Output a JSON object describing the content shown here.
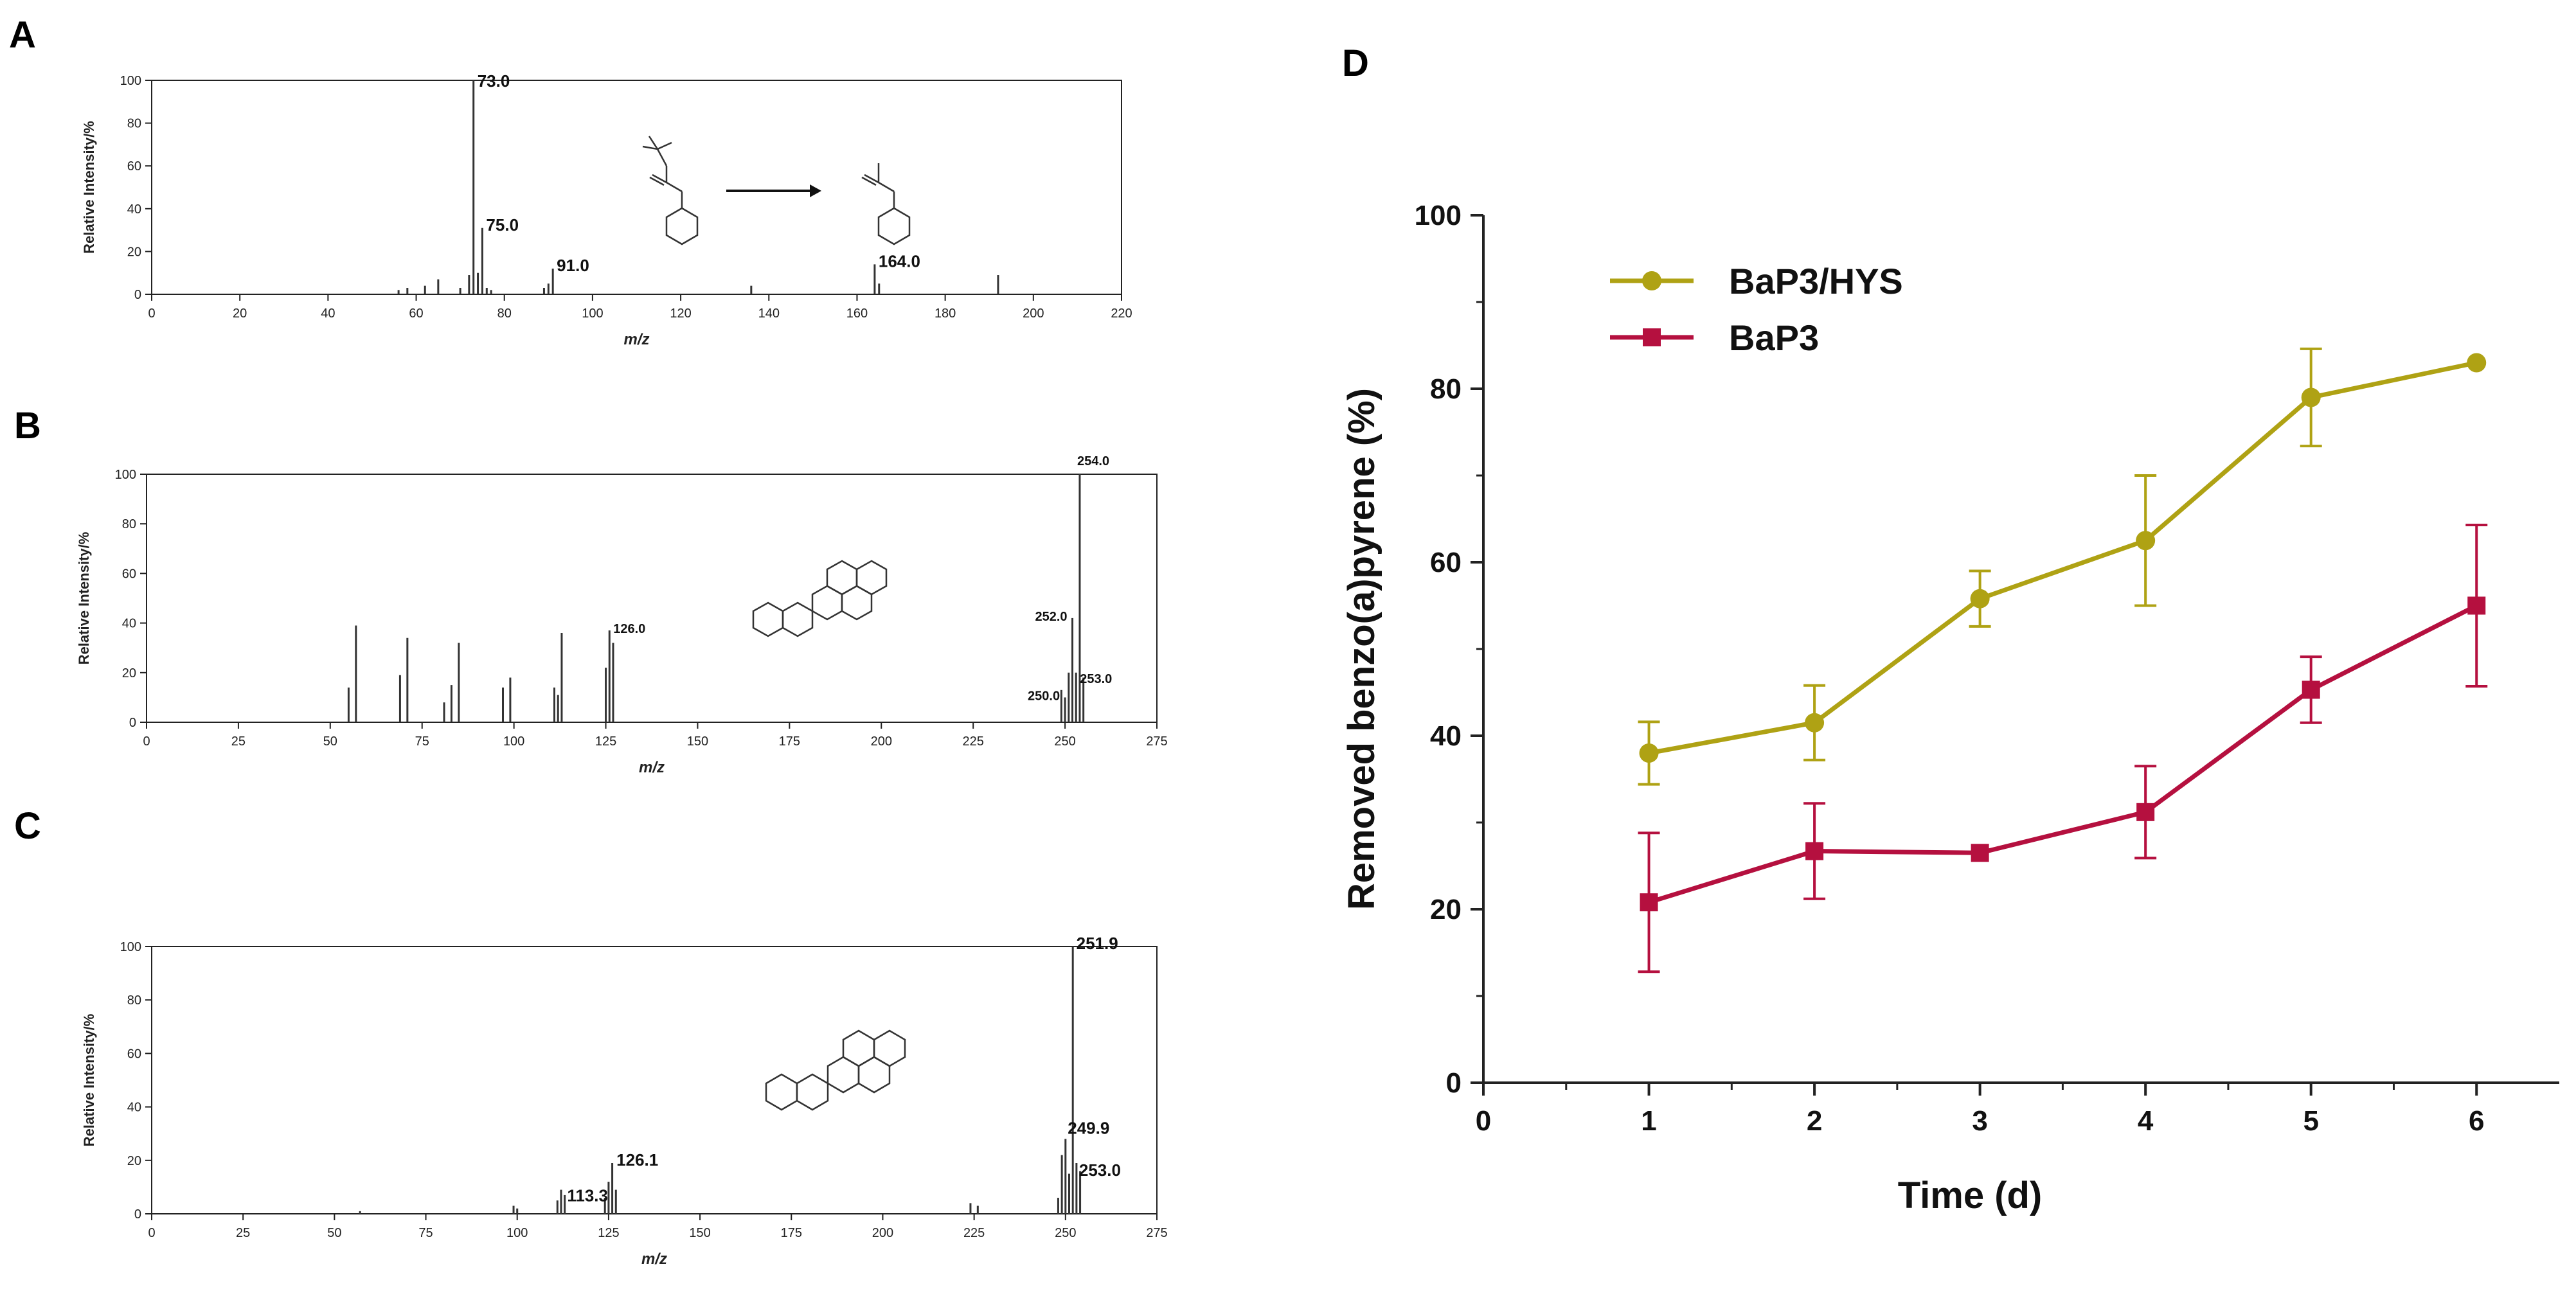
{
  "panels": {
    "A": {
      "label": "A"
    },
    "B": {
      "label": "B"
    },
    "C": {
      "label": "C"
    },
    "D": {
      "label": "D"
    }
  },
  "chart_data": [
    {
      "id": "A",
      "type": "bar",
      "xlabel": "m/z",
      "ylabel": "Relative Intensity/%",
      "xlim": [
        0,
        220
      ],
      "ylim": [
        0,
        100
      ],
      "xticks": [
        0,
        20,
        40,
        60,
        80,
        100,
        120,
        140,
        160,
        180,
        200,
        220
      ],
      "yticks": [
        0,
        20,
        40,
        60,
        80,
        100
      ],
      "x": [
        56,
        58,
        62,
        65,
        70,
        72,
        73,
        74,
        75,
        76,
        77,
        89,
        90,
        91,
        136,
        164,
        165,
        192
      ],
      "values": [
        2,
        3,
        4,
        7,
        3,
        9,
        100,
        10,
        31,
        3,
        2,
        3,
        5,
        12,
        4,
        14,
        5,
        9
      ],
      "labels": [
        {
          "x": 73,
          "y": 100,
          "text": "73.0"
        },
        {
          "x": 75,
          "y": 31,
          "text": "75.0"
        },
        {
          "x": 91,
          "y": 12,
          "text": "91.0"
        },
        {
          "x": 164,
          "y": 14,
          "text": "164.0"
        }
      ]
    },
    {
      "id": "B",
      "type": "bar",
      "xlabel": "m/z",
      "ylabel": "Relative Intensity/%",
      "xlim": [
        0,
        275
      ],
      "ylim": [
        0,
        100
      ],
      "xticks": [
        0,
        25,
        50,
        75,
        100,
        125,
        150,
        175,
        200,
        225,
        250,
        275
      ],
      "yticks": [
        0,
        20,
        40,
        60,
        80,
        100
      ],
      "x": [
        55,
        57,
        69,
        71,
        81,
        83,
        85,
        97,
        99,
        111,
        112,
        113,
        125,
        126,
        127,
        249,
        250,
        251,
        252,
        253,
        254,
        255
      ],
      "values": [
        14,
        39,
        19,
        34,
        8,
        15,
        32,
        14,
        18,
        14,
        11,
        36,
        22,
        37,
        32,
        13,
        10,
        20,
        42,
        20,
        100,
        18
      ],
      "labels": [
        {
          "x": 254,
          "y": 100,
          "text": "254.0"
        },
        {
          "x": 252,
          "y": 42,
          "text": "252.0"
        },
        {
          "x": 126,
          "y": 37,
          "text": "126.0"
        },
        {
          "x": 253,
          "y": 20,
          "text": "253.0"
        },
        {
          "x": 250,
          "y": 10,
          "text": "250.0"
        }
      ]
    },
    {
      "id": "C",
      "type": "bar",
      "xlabel": "m/z",
      "ylabel": "Relative Intensity/%",
      "xlim": [
        0,
        275
      ],
      "ylim": [
        0,
        100
      ],
      "xticks": [
        0,
        25,
        50,
        75,
        100,
        125,
        150,
        175,
        200,
        225,
        250,
        275
      ],
      "yticks": [
        0,
        20,
        40,
        60,
        80,
        100
      ],
      "x": [
        57,
        99,
        100,
        111,
        112,
        113,
        124,
        125,
        126,
        127,
        224,
        226,
        248,
        249,
        250,
        251,
        252,
        253,
        254
      ],
      "values": [
        1,
        3,
        2,
        5,
        9,
        7,
        6,
        12,
        19,
        9,
        4,
        3,
        6,
        22,
        28,
        15,
        100,
        19,
        16
      ],
      "labels": [
        {
          "x": 251.9,
          "y": 100,
          "text": "251.9"
        },
        {
          "x": 249.9,
          "y": 28,
          "text": "249.9"
        },
        {
          "x": 126.1,
          "y": 19,
          "text": "126.1"
        },
        {
          "x": 253,
          "y": 19,
          "text": "253.0"
        },
        {
          "x": 113.3,
          "y": 9,
          "text": "113.3"
        }
      ]
    },
    {
      "id": "D",
      "type": "line",
      "xlabel": "Time (d)",
      "ylabel": "Removed benzo(a)pyrene (%)",
      "xlim": [
        0,
        6.5
      ],
      "ylim": [
        0,
        100
      ],
      "xticks": [
        0,
        1,
        2,
        3,
        4,
        5,
        6
      ],
      "yticks": [
        0,
        20,
        40,
        60,
        80,
        100
      ],
      "x": [
        1,
        2,
        3,
        4,
        5,
        6
      ],
      "series": [
        {
          "name": "BaP3/HYS",
          "color": "#AFA214",
          "marker": "circle",
          "values": [
            38,
            41.5,
            55.8,
            62.5,
            79,
            83
          ],
          "errors": [
            3.6,
            4.3,
            3.2,
            7.5,
            5.6,
            0
          ]
        },
        {
          "name": "BaP3",
          "color": "#B5103F",
          "marker": "square",
          "values": [
            20.8,
            26.7,
            26.5,
            31.2,
            45.3,
            55
          ],
          "errors": [
            8,
            5.5,
            0,
            5.3,
            3.8,
            9.3
          ]
        }
      ]
    }
  ]
}
